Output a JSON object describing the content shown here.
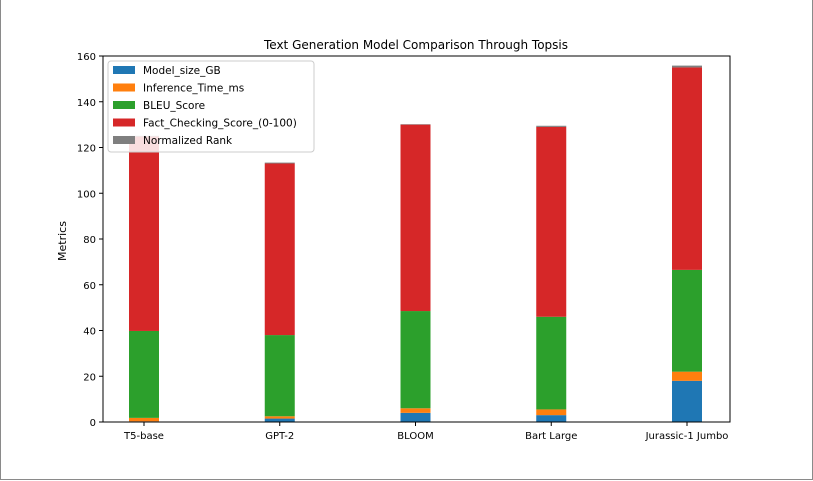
{
  "chart_data": {
    "type": "bar",
    "stacked": true,
    "title": "Text Generation Model Comparison Through Topsis",
    "xlabel": "",
    "ylabel": "Metrics",
    "ylim": [
      0,
      160
    ],
    "yticks": [
      0,
      20,
      40,
      60,
      80,
      100,
      120,
      140,
      160
    ],
    "categories": [
      "T5-base",
      "GPT-2",
      "BLOOM",
      "Bart Large",
      "Jurassic-1 Jumbo"
    ],
    "series": [
      {
        "name": "Model_size_GB",
        "color": "#1f77b4",
        "values": [
          0.3,
          1.5,
          4.0,
          3.0,
          18.0
        ]
      },
      {
        "name": "Inference_Time_ms",
        "color": "#ff7f0e",
        "values": [
          1.5,
          1.0,
          2.0,
          2.5,
          4.0
        ]
      },
      {
        "name": "BLEU_Score",
        "color": "#2ca02c",
        "values": [
          38.0,
          35.5,
          42.5,
          40.5,
          44.5
        ]
      },
      {
        "name": "Fact_Checking_Score_(0-100)",
        "color": "#d62728",
        "values": [
          85.0,
          75.0,
          81.5,
          83.0,
          88.5
        ]
      },
      {
        "name": "Normalized Rank",
        "color": "#7f7f7f",
        "values": [
          0.3,
          0.4,
          0.2,
          0.5,
          0.8
        ]
      }
    ],
    "legend_position": "top-left",
    "grid": false
  }
}
